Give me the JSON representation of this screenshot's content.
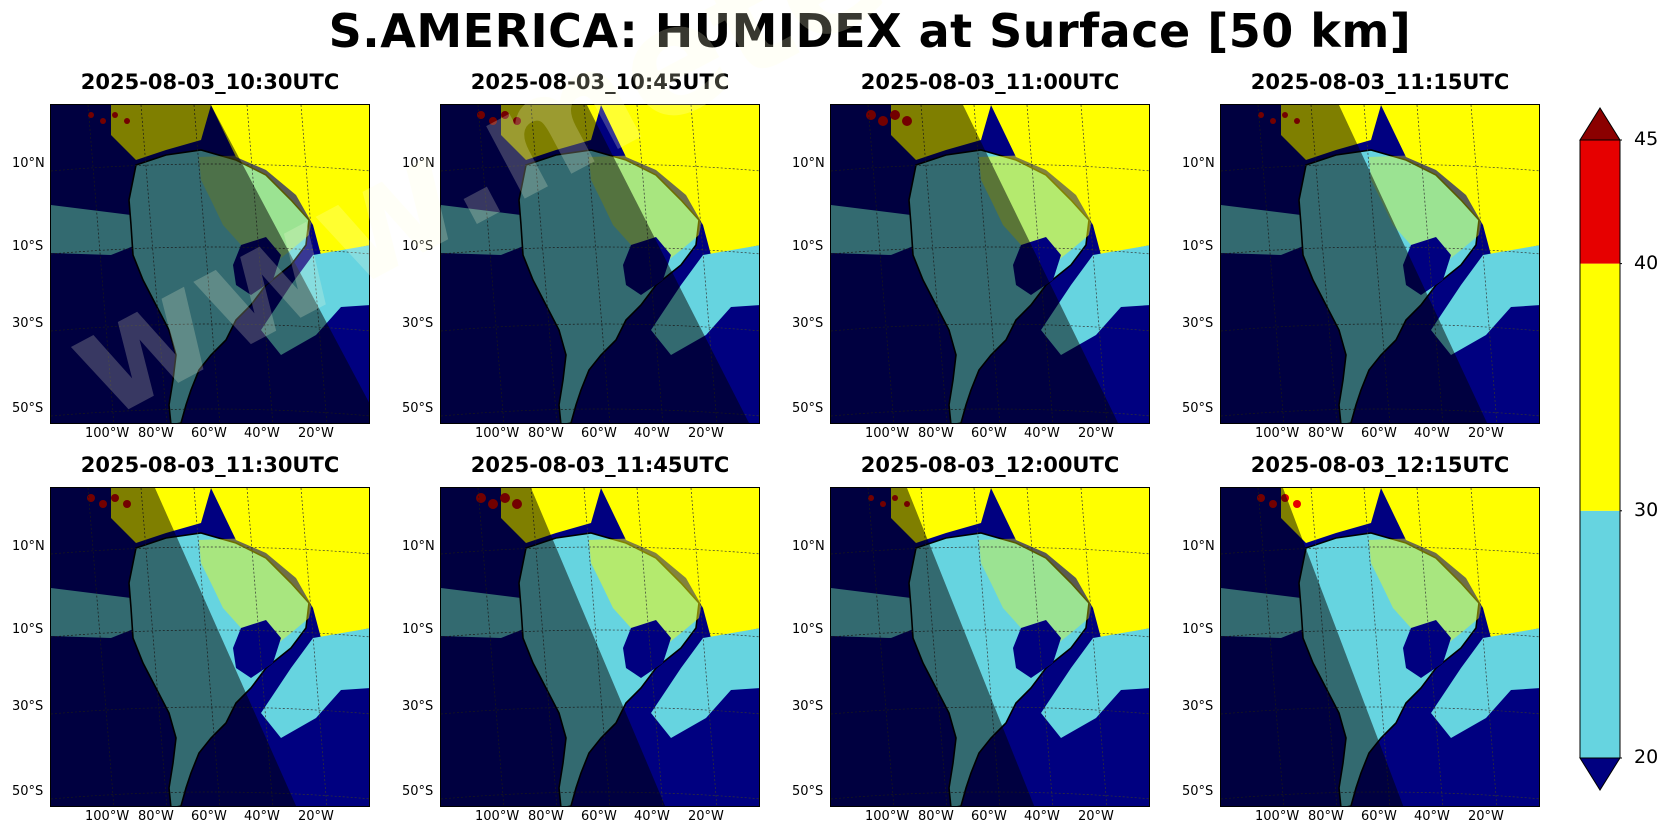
{
  "title": "S.AMERICA: HUMIDEX at Surface [50 km]",
  "panels": [
    {
      "time": "2025-08-03_10:30UTC",
      "night_frac": 0.0
    },
    {
      "time": "2025-08-03_10:45UTC",
      "night_frac": 0.14
    },
    {
      "time": "2025-08-03_11:00UTC",
      "night_frac": 0.28
    },
    {
      "time": "2025-08-03_11:15UTC",
      "night_frac": 0.42
    },
    {
      "time": "2025-08-03_11:30UTC",
      "night_frac": 0.56
    },
    {
      "time": "2025-08-03_11:45UTC",
      "night_frac": 0.7
    },
    {
      "time": "2025-08-03_12:00UTC",
      "night_frac": 0.84
    },
    {
      "time": "2025-08-03_12:15UTC",
      "night_frac": 0.98
    }
  ],
  "lat_ticks": [
    "10°N",
    "10°S",
    "30°S",
    "50°S"
  ],
  "lon_ticks": [
    "100°W",
    "80°W",
    "60°W",
    "40°W",
    "20°W"
  ],
  "colorbar": {
    "ticks": [
      "20",
      "30",
      "40",
      "45"
    ],
    "levels": [
      {
        "from": 20,
        "to": 30,
        "color": "#66d4e0"
      },
      {
        "from": 30,
        "to": 40,
        "color": "#ffff00"
      },
      {
        "from": 40,
        "to": 45,
        "color": "#e60000"
      }
    ],
    "under_color": "#000080",
    "over_color": "#8b0000"
  },
  "watermark": "www.meteosimulation.com"
}
